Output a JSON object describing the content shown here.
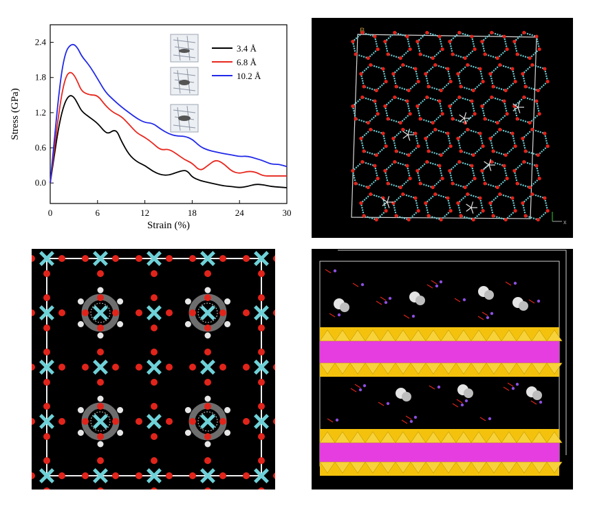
{
  "chart_data": {
    "type": "line",
    "xlabel": "Strain (%)",
    "ylabel": "Stress (GPa)",
    "xlim": [
      0,
      30
    ],
    "ylim": [
      -0.35,
      2.7
    ],
    "xticks": [
      "0",
      "6",
      "12",
      "18",
      "24",
      "30"
    ],
    "yticks": [
      "0.0",
      "0.6",
      "1.2",
      "1.8",
      "2.4"
    ],
    "legend_position": "top-right",
    "series": [
      {
        "name": "3.4 Å",
        "color": "#000000",
        "points": [
          [
            0,
            0
          ],
          [
            0.5,
            0.45
          ],
          [
            1,
            0.9
          ],
          [
            1.5,
            1.22
          ],
          [
            2,
            1.42
          ],
          [
            2.5,
            1.5
          ],
          [
            3,
            1.47
          ],
          [
            3.5,
            1.35
          ],
          [
            4,
            1.22
          ],
          [
            5,
            1.12
          ],
          [
            6,
            1.02
          ],
          [
            7,
            0.86
          ],
          [
            7.5,
            0.85
          ],
          [
            8,
            0.9
          ],
          [
            8.5,
            0.88
          ],
          [
            9,
            0.72
          ],
          [
            10,
            0.48
          ],
          [
            11,
            0.36
          ],
          [
            12,
            0.3
          ],
          [
            13,
            0.2
          ],
          [
            14,
            0.14
          ],
          [
            15,
            0.13
          ],
          [
            16,
            0.18
          ],
          [
            17,
            0.22
          ],
          [
            17.5,
            0.19
          ],
          [
            18,
            0.1
          ],
          [
            19,
            0.04
          ],
          [
            20,
            0.01
          ],
          [
            21,
            -0.02
          ],
          [
            22,
            -0.05
          ],
          [
            23,
            -0.06
          ],
          [
            24,
            -0.08
          ],
          [
            25,
            -0.06
          ],
          [
            26,
            -0.02
          ],
          [
            27,
            -0.03
          ],
          [
            28,
            -0.06
          ],
          [
            29,
            -0.07
          ],
          [
            30,
            -0.08
          ]
        ]
      },
      {
        "name": "6.8 Å",
        "color": "#e8261d",
        "points": [
          [
            0,
            0
          ],
          [
            0.5,
            0.55
          ],
          [
            1,
            1.1
          ],
          [
            1.5,
            1.55
          ],
          [
            2,
            1.82
          ],
          [
            2.5,
            1.9
          ],
          [
            3,
            1.85
          ],
          [
            3.5,
            1.72
          ],
          [
            4,
            1.56
          ],
          [
            5,
            1.5
          ],
          [
            6,
            1.5
          ],
          [
            7,
            1.32
          ],
          [
            8,
            1.2
          ],
          [
            9,
            1.14
          ],
          [
            10,
            1.0
          ],
          [
            11,
            0.85
          ],
          [
            12,
            0.78
          ],
          [
            13,
            0.68
          ],
          [
            14,
            0.56
          ],
          [
            15,
            0.58
          ],
          [
            16,
            0.5
          ],
          [
            17,
            0.4
          ],
          [
            18,
            0.34
          ],
          [
            19,
            0.2
          ],
          [
            20,
            0.3
          ],
          [
            21,
            0.4
          ],
          [
            22,
            0.33
          ],
          [
            23,
            0.2
          ],
          [
            24,
            0.16
          ],
          [
            25,
            0.2
          ],
          [
            26,
            0.19
          ],
          [
            27,
            0.12
          ],
          [
            28,
            0.12
          ],
          [
            29,
            0.12
          ],
          [
            30,
            0.12
          ]
        ]
      },
      {
        "name": "10.2 Å",
        "color": "#2129e8",
        "points": [
          [
            0,
            0
          ],
          [
            0.5,
            0.7
          ],
          [
            1,
            1.4
          ],
          [
            1.5,
            1.95
          ],
          [
            2,
            2.25
          ],
          [
            2.5,
            2.35
          ],
          [
            3,
            2.37
          ],
          [
            3.5,
            2.3
          ],
          [
            4,
            2.16
          ],
          [
            5,
            2.0
          ],
          [
            6,
            1.78
          ],
          [
            7,
            1.55
          ],
          [
            8,
            1.42
          ],
          [
            9,
            1.3
          ],
          [
            10,
            1.2
          ],
          [
            11,
            1.1
          ],
          [
            12,
            1.03
          ],
          [
            13,
            1.02
          ],
          [
            14,
            0.92
          ],
          [
            15,
            0.84
          ],
          [
            16,
            0.8
          ],
          [
            17,
            0.8
          ],
          [
            18,
            0.75
          ],
          [
            19,
            0.62
          ],
          [
            20,
            0.56
          ],
          [
            21,
            0.53
          ],
          [
            22,
            0.5
          ],
          [
            23,
            0.48
          ],
          [
            24,
            0.45
          ],
          [
            25,
            0.46
          ],
          [
            26,
            0.42
          ],
          [
            27,
            0.38
          ],
          [
            28,
            0.32
          ],
          [
            29,
            0.32
          ],
          [
            30,
            0.28
          ]
        ]
      }
    ]
  },
  "colors": {
    "panel_background": "#000000",
    "silicon": "#6fd1d8",
    "oxygen": "#e1241b",
    "carbon": "#6d6d6d",
    "hydrogen": "#e6e6e6",
    "tetrahedra": "#f4c20d",
    "octahedra": "#e63de0",
    "cation": "#8c4fe0"
  }
}
